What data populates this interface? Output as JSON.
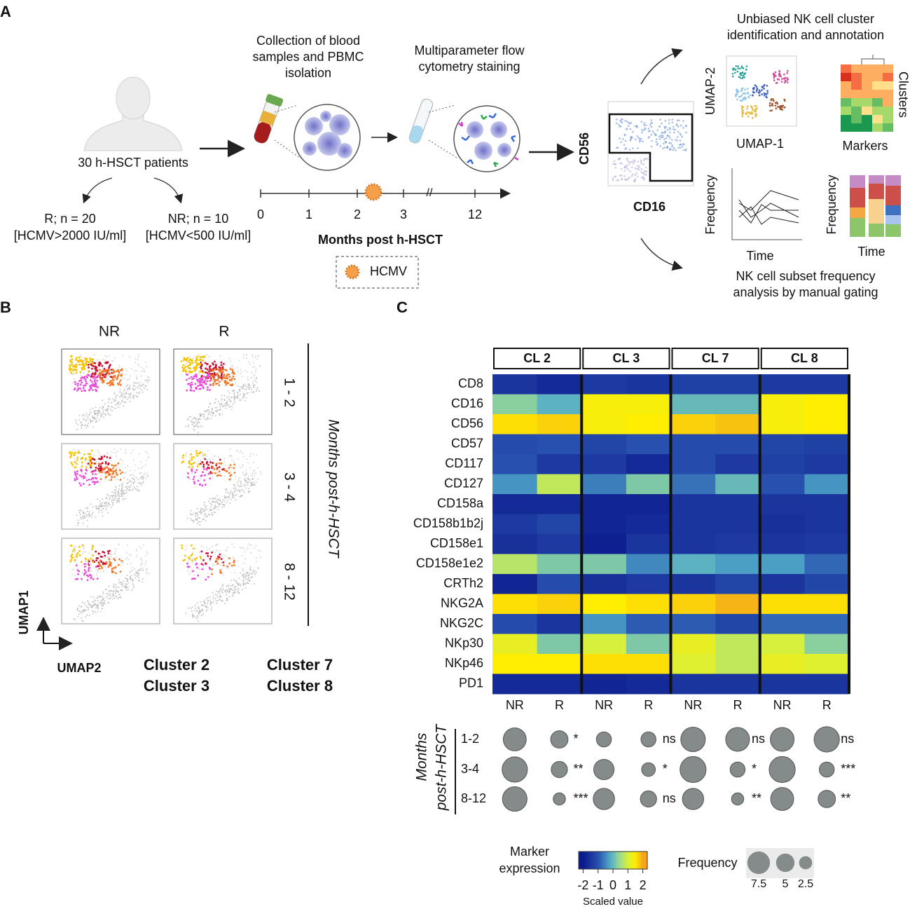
{
  "panel_a": {
    "label": "A",
    "patients": "30 h-HSCT patients",
    "groups": [
      {
        "name": "R; n = 20",
        "criterion": "[HCMV>2000 IU/ml]"
      },
      {
        "name": "NR; n = 10",
        "criterion": "[HCMV<500 IU/ml]"
      }
    ],
    "step1": [
      "Collection of blood",
      "samples and PBMC",
      "isolation"
    ],
    "step2": [
      "Multiparameter flow",
      "cytometry staining"
    ],
    "timeline": {
      "ticks": [
        "0",
        "1",
        "2",
        "3",
        "12"
      ],
      "label": "Months post h-HSCT",
      "legend": "HCMV"
    },
    "gating": {
      "y": "CD56",
      "x": "CD16"
    },
    "analysis1": {
      "title": [
        "Unbiased NK cell cluster",
        "identification and annotation"
      ],
      "umap_y": "UMAP-2",
      "umap_x": "UMAP-1",
      "heat_x": "Markers",
      "heat_y": "Clusters"
    },
    "analysis2": {
      "title": [
        "NK cell subset frequency",
        "analysis by manual gating"
      ],
      "line_y": "Frequency",
      "line_x": "Time",
      "bar_y": "Frequency",
      "bar_x": "Time"
    }
  },
  "panel_b": {
    "label": "B",
    "columns": [
      "NR",
      "R"
    ],
    "rows": [
      "1 - 2",
      "3 - 4",
      "8 - 12"
    ],
    "row_title": "Months post-h-HSCT",
    "axis_y": "UMAP1",
    "axis_x": "UMAP2",
    "clusters": [
      {
        "name": "Cluster 2",
        "color": "#c8102e"
      },
      {
        "name": "Cluster 3",
        "color": "#f07a2a"
      },
      {
        "name": "Cluster 7",
        "color": "#f5c400"
      },
      {
        "name": "Cluster 8",
        "color": "#e84fd8"
      }
    ]
  },
  "panel_c": {
    "label": "C",
    "clusters": [
      "CL 2",
      "CL 3",
      "CL 7",
      "CL 8"
    ],
    "columns": [
      "NR",
      "R",
      "NR",
      "R",
      "NR",
      "R",
      "NR",
      "R"
    ],
    "markers": [
      "CD8",
      "CD16",
      "CD56",
      "CD57",
      "CD117",
      "CD127",
      "CD158a",
      "CD158b1b2j",
      "CD158e1",
      "CD158e1e2",
      "CRTh2",
      "NKG2A",
      "NKG2C",
      "NKp30",
      "NKp46",
      "PD1"
    ],
    "values": [
      [
        -1.5,
        -1.7,
        -1.4,
        -1.5,
        -1.3,
        -1.3,
        -1.4,
        -1.4
      ],
      [
        0.3,
        -0.1,
        1.4,
        1.4,
        0,
        0,
        1.4,
        1.5
      ],
      [
        1.6,
        1.7,
        1.4,
        1.5,
        1.7,
        1.8,
        1.4,
        1.5
      ],
      [
        -1.1,
        -1,
        -1.2,
        -1,
        -1.1,
        -1.1,
        -1.2,
        -1.3
      ],
      [
        -1,
        -1.4,
        -1.4,
        -1.7,
        -1.1,
        -1.4,
        -1.3,
        -1.4
      ],
      [
        -0.4,
        0.8,
        -0.6,
        0.2,
        -0.7,
        0,
        -1,
        -0.4
      ],
      [
        -1.7,
        -1.7,
        -1.8,
        -1.8,
        -1.5,
        -1.5,
        -1.5,
        -1.5
      ],
      [
        -1.4,
        -1.2,
        -1.8,
        -1.7,
        -1.5,
        -1.5,
        -1.6,
        -1.5
      ],
      [
        -1.6,
        -1.4,
        -1.9,
        -1.5,
        -1.5,
        -1.4,
        -1.5,
        -1.4
      ],
      [
        0.7,
        0.2,
        0.2,
        -0.5,
        -0.1,
        -0.3,
        -0.3,
        -0.8
      ],
      [
        -1.8,
        -1.1,
        -1.6,
        -1.4,
        -1.5,
        -1.2,
        -1.5,
        -1.2
      ],
      [
        1.6,
        1.7,
        1.5,
        1.6,
        1.7,
        1.9,
        1.6,
        1.6
      ],
      [
        -1.1,
        -1.5,
        -0.4,
        -0.9,
        -0.9,
        -1.2,
        -0.8,
        -0.8
      ],
      [
        1.2,
        0.2,
        1,
        0.2,
        1.2,
        0.8,
        1,
        0.3
      ],
      [
        1.5,
        1.5,
        1.6,
        1.6,
        1.1,
        0.8,
        1.2,
        1.1
      ],
      [
        -1.7,
        -1.7,
        -1.8,
        -1.7,
        -1.5,
        -1.5,
        -1.5,
        -1.5
      ]
    ],
    "colorscale": {
      "title": [
        "Marker",
        "expression"
      ],
      "lim": [
        -2.3,
        2.3
      ],
      "ticks": [
        -2,
        -1,
        0,
        1,
        2
      ],
      "label": "Scaled value"
    },
    "bubbles": {
      "title": [
        "Months",
        "post-h-HSCT"
      ],
      "rows": [
        "1-2",
        "3-4",
        "8-12"
      ],
      "color": "#858a8a",
      "values": [
        [
          7,
          4,
          3,
          3,
          8,
          7.5,
          7.5,
          8.5
        ],
        [
          8.5,
          3.5,
          5.5,
          2.5,
          9,
          3,
          9,
          3
        ],
        [
          8,
          2,
          6,
          3.5,
          6,
          2,
          7,
          4
        ]
      ],
      "significance": [
        [
          "*",
          "ns",
          "ns",
          "ns"
        ],
        [
          "**",
          "*",
          "*",
          "***"
        ],
        [
          "***",
          "ns",
          "**",
          "**"
        ]
      ],
      "legend": {
        "title": "Frequency",
        "sizes": [
          7.5,
          5,
          2.5
        ]
      }
    }
  }
}
